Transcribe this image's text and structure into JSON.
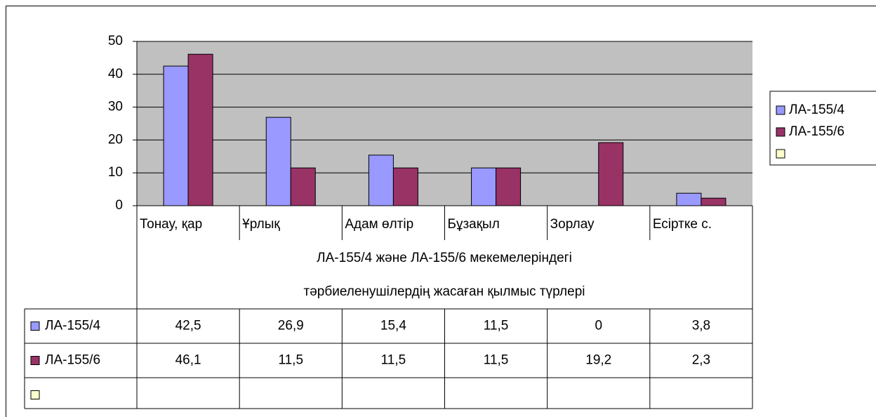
{
  "chart_data": {
    "type": "bar",
    "categories": [
      "Тонау, қар",
      "Ұрлық",
      "Адам өлтір",
      "Бұзақыл",
      "Зорлау",
      "Есіртке с."
    ],
    "x_label": [
      "ЛА-155/4 және ЛА-155/6 мекемелеріндегі",
      "тәрбиеленушілердің жасаған қылмыс түрлері"
    ],
    "series": [
      {
        "name": "ЛА-155/4",
        "color": "#9999ff",
        "values": [
          42.5,
          26.9,
          15.4,
          11.5,
          0,
          3.8
        ],
        "value_labels": [
          "42,5",
          "26,9",
          "15,4",
          "11,5",
          "0",
          "3,8"
        ]
      },
      {
        "name": "ЛА-155/6",
        "color": "#993366",
        "values": [
          46.1,
          11.5,
          11.5,
          11.5,
          19.2,
          2.3
        ],
        "value_labels": [
          "46,1",
          "11,5",
          "11,5",
          "11,5",
          "19,2",
          "2,3"
        ]
      },
      {
        "color": "#ffffcc",
        "values": [
          null,
          null,
          null,
          null,
          null,
          null
        ]
      }
    ],
    "ylim": [
      0,
      50
    ],
    "yticks": [
      0,
      10,
      20,
      30,
      40,
      50
    ],
    "grid": true,
    "legend": "right",
    "plot_background": "#c0c0c0"
  }
}
